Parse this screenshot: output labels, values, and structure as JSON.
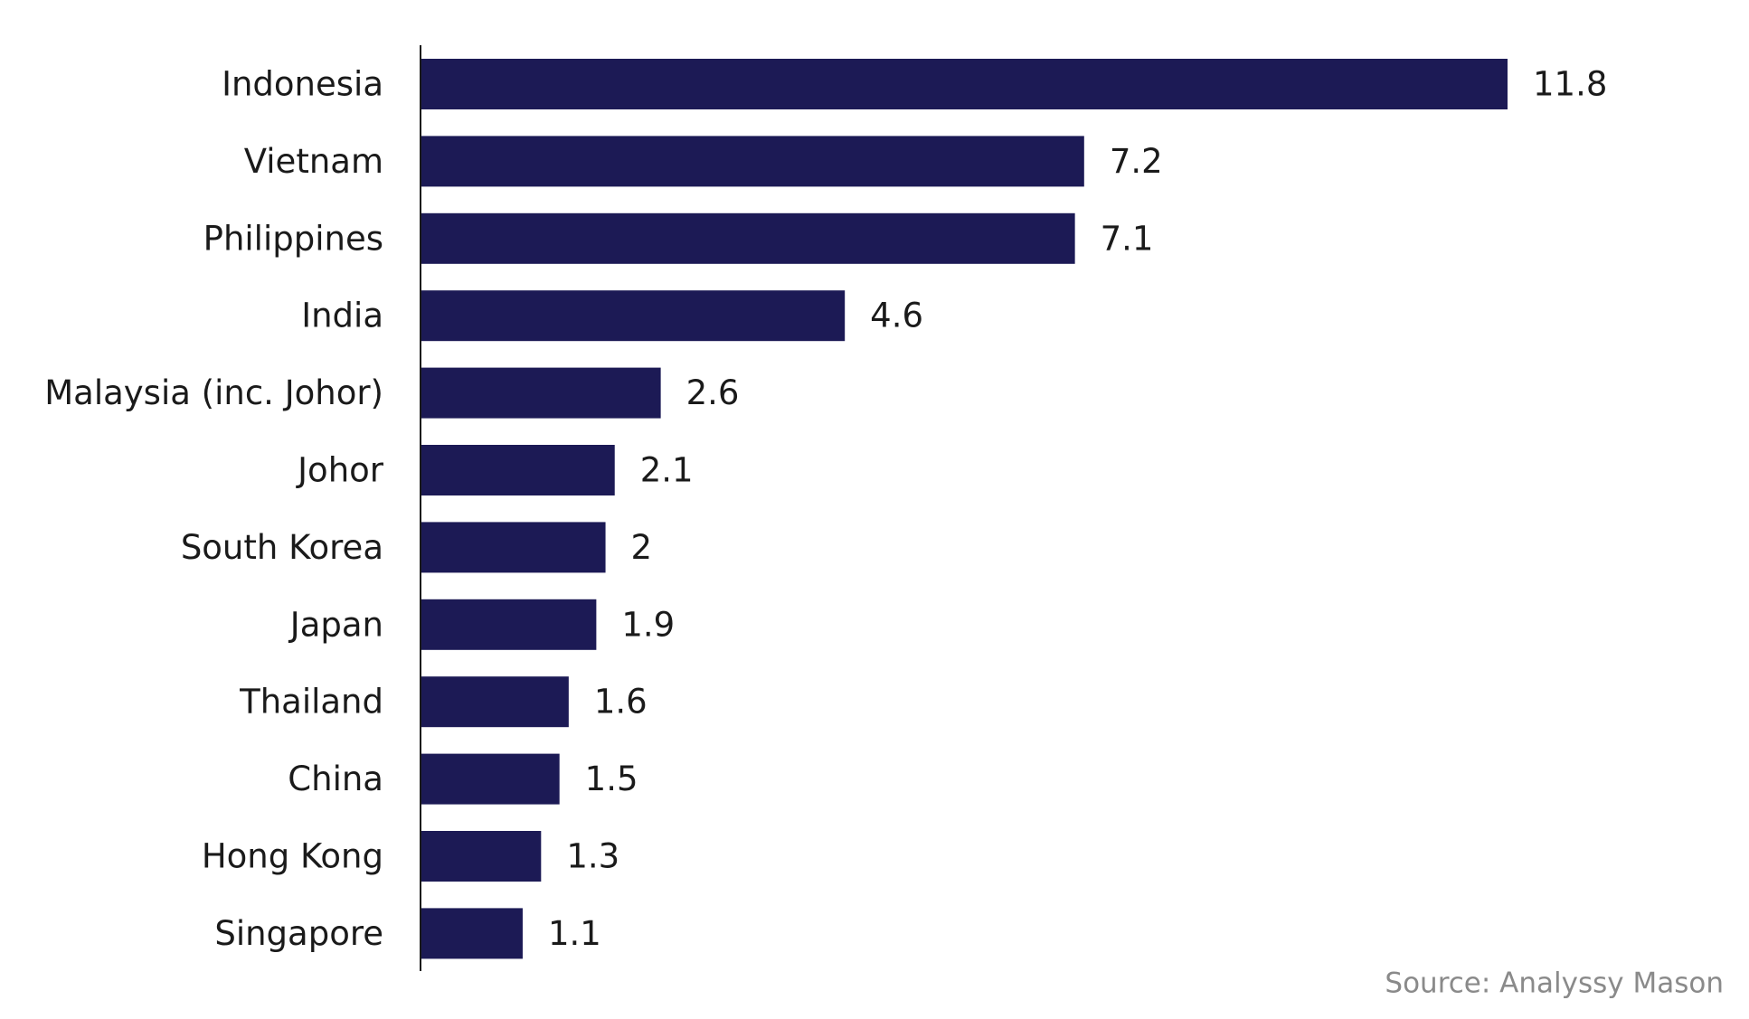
{
  "chart_data": {
    "type": "bar",
    "orientation": "horizontal",
    "categories": [
      "Indonesia",
      "Vietnam",
      "Philippines",
      "India",
      "Malaysia (inc. Johor)",
      "Johor",
      "South Korea",
      "Japan",
      "Thailand",
      "China",
      "Hong Kong",
      "Singapore"
    ],
    "values": [
      11.8,
      7.2,
      7.1,
      4.6,
      2.6,
      2.1,
      2,
      1.9,
      1.6,
      1.5,
      1.3,
      1.1
    ],
    "color": "#1c1a55",
    "source": "Source: Analyssy Mason"
  }
}
